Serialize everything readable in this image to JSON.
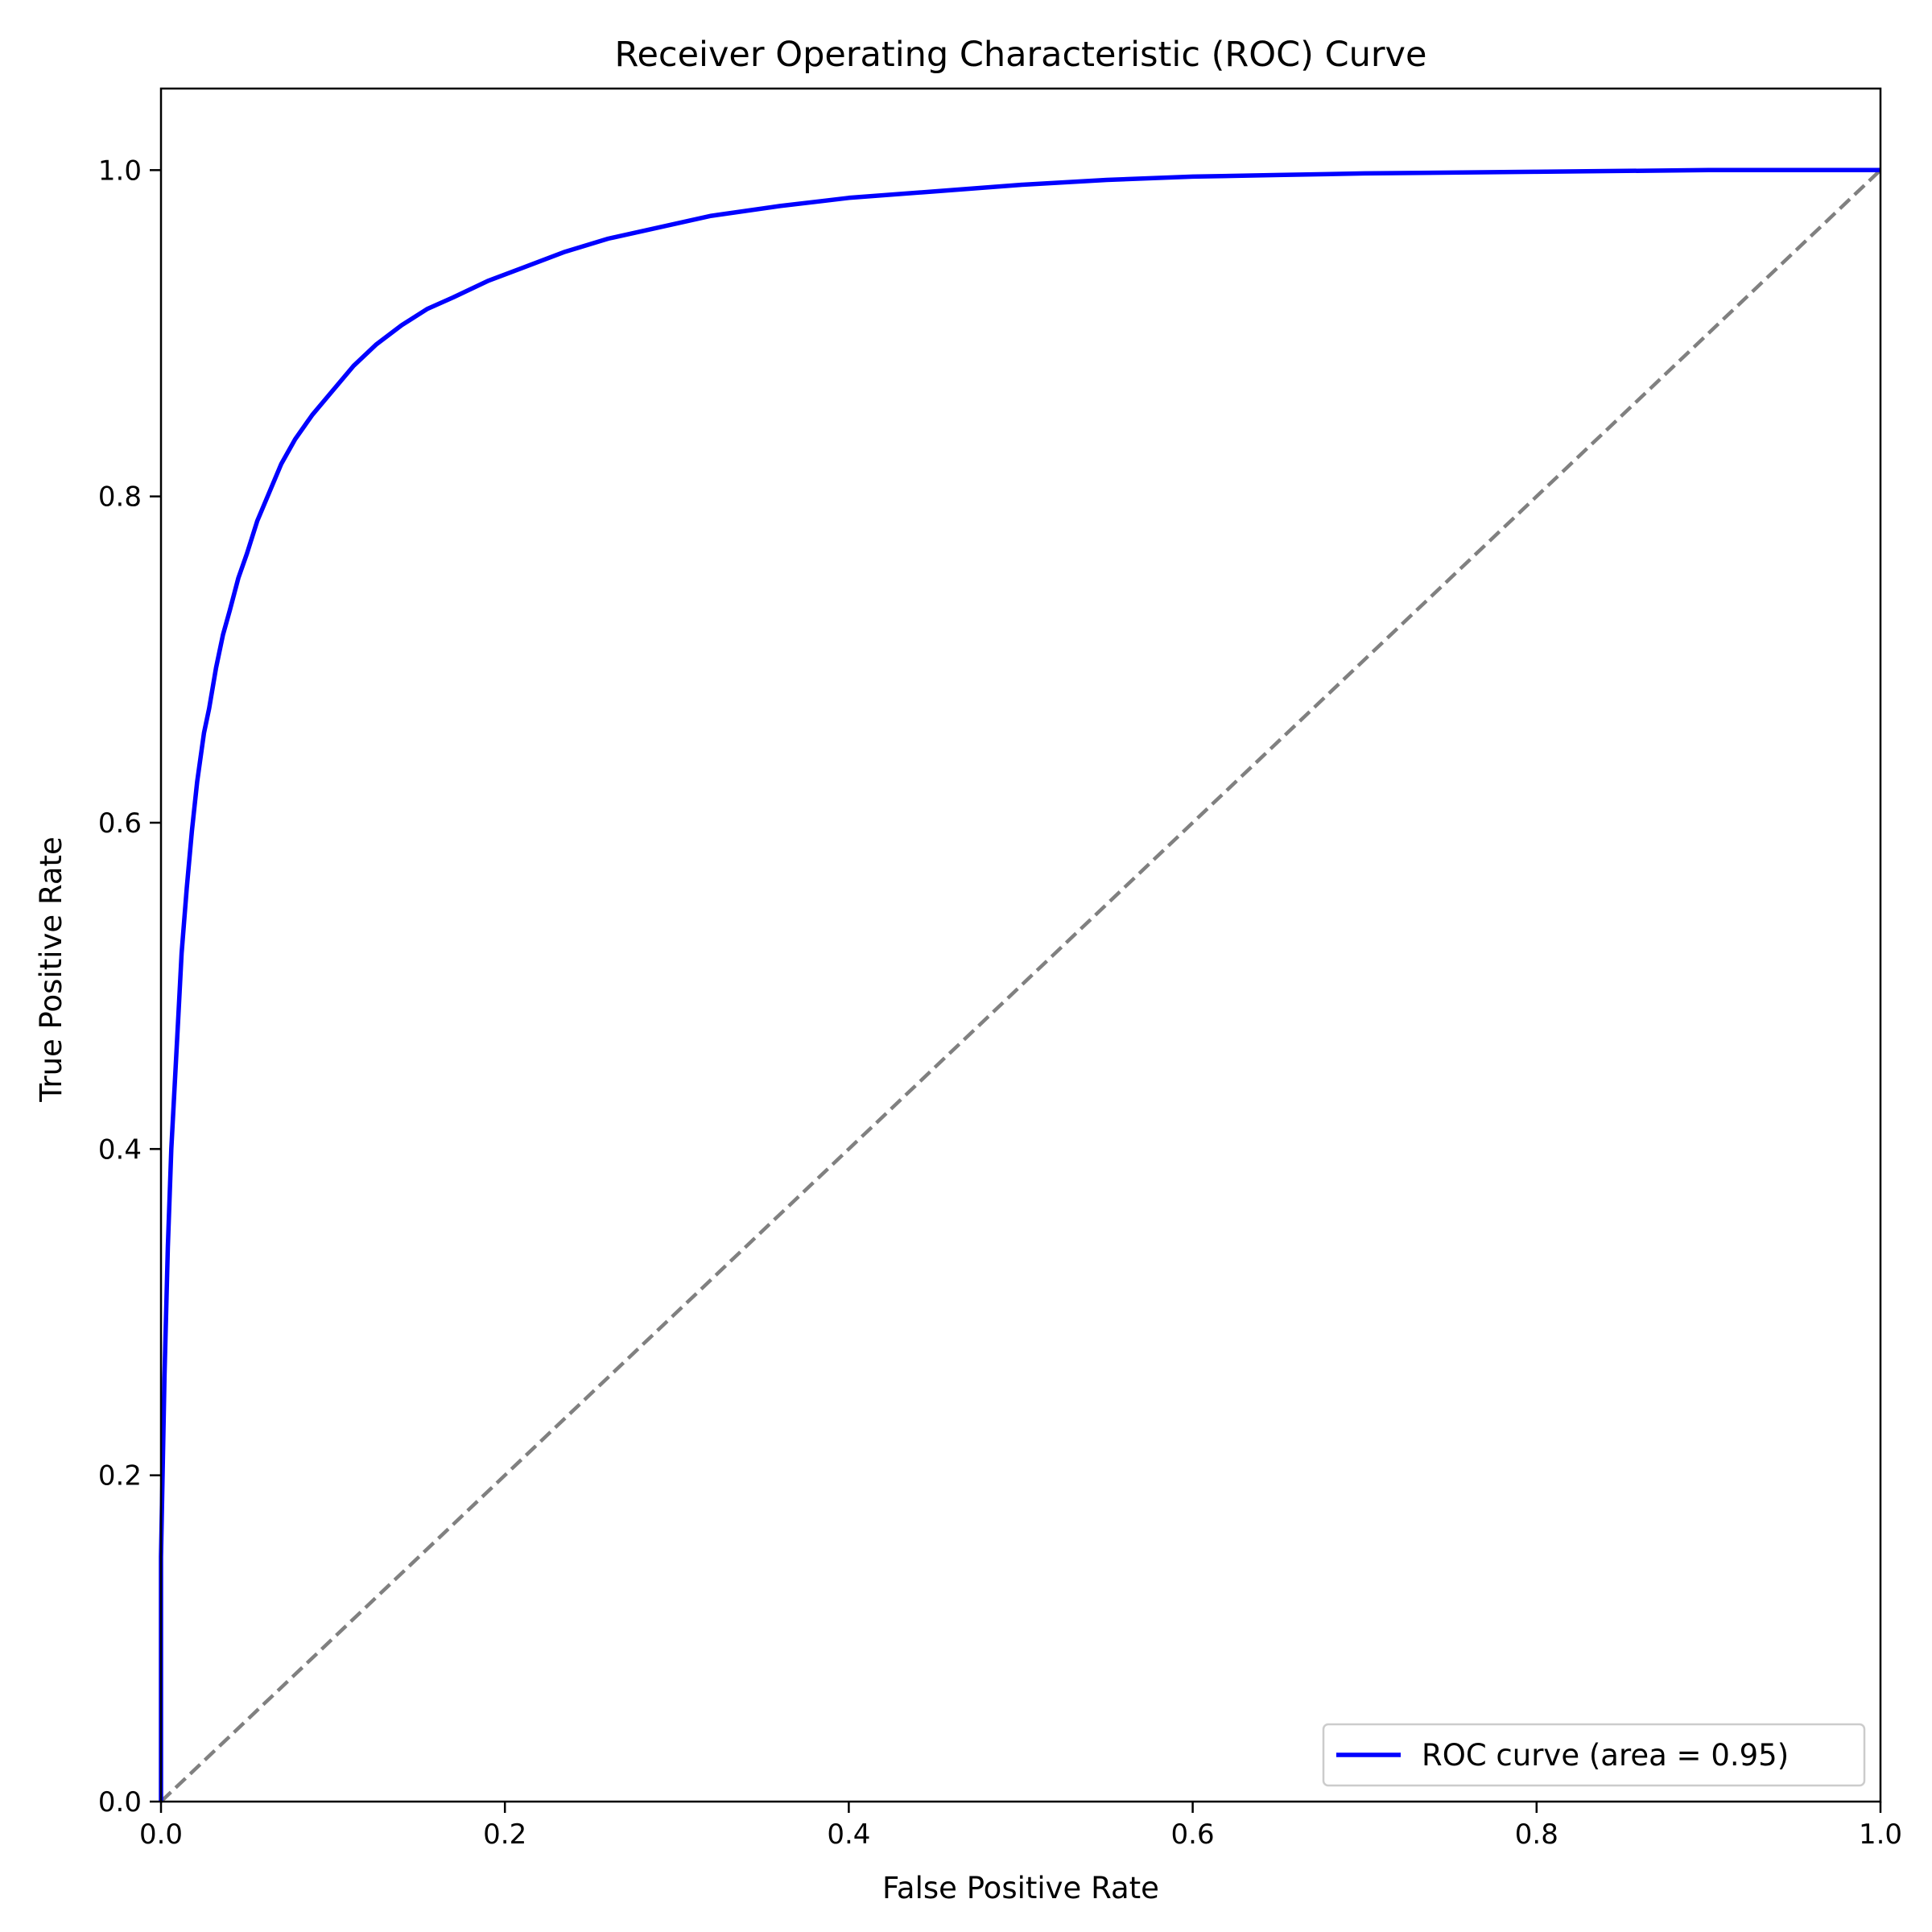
{
  "chart_data": {
    "type": "line",
    "title": "Receiver Operating Characteristic (ROC) Curve",
    "xlabel": "False Positive Rate",
    "ylabel": "True Positive Rate",
    "xlim": [
      0.0,
      1.0
    ],
    "ylim": [
      0.0,
      1.05
    ],
    "xticks": [
      "0.0",
      "0.2",
      "0.4",
      "0.6",
      "0.8",
      "1.0"
    ],
    "yticks": [
      "0.0",
      "0.2",
      "0.4",
      "0.6",
      "0.8",
      "1.0"
    ],
    "xtick_values": [
      0.0,
      0.2,
      0.4,
      0.6,
      0.8,
      1.0
    ],
    "ytick_values": [
      0.0,
      0.2,
      0.4,
      0.6,
      0.8,
      1.0
    ],
    "grid": false,
    "legend_position": "lower-right",
    "series": [
      {
        "name": "ROC curve (area = 0.95)",
        "color": "#0000ff",
        "style": "solid",
        "x": [
          0.0,
          0.0,
          0.002,
          0.004,
          0.006,
          0.008,
          0.01,
          0.012,
          0.015,
          0.018,
          0.021,
          0.025,
          0.028,
          0.032,
          0.036,
          0.04,
          0.045,
          0.05,
          0.056,
          0.062,
          0.07,
          0.078,
          0.088,
          0.1,
          0.112,
          0.125,
          0.14,
          0.155,
          0.17,
          0.19,
          0.21,
          0.235,
          0.26,
          0.29,
          0.32,
          0.36,
          0.4,
          0.45,
          0.5,
          0.55,
          0.6,
          0.65,
          0.7,
          0.8,
          0.9,
          1.0
        ],
        "y": [
          0.0,
          0.15,
          0.26,
          0.34,
          0.4,
          0.44,
          0.48,
          0.52,
          0.56,
          0.595,
          0.625,
          0.655,
          0.67,
          0.695,
          0.715,
          0.73,
          0.75,
          0.765,
          0.785,
          0.8,
          0.82,
          0.835,
          0.85,
          0.865,
          0.88,
          0.893,
          0.905,
          0.915,
          0.922,
          0.932,
          0.94,
          0.95,
          0.958,
          0.965,
          0.972,
          0.978,
          0.983,
          0.987,
          0.991,
          0.994,
          0.996,
          0.997,
          0.998,
          0.999,
          1.0,
          1.0
        ]
      },
      {
        "name": "",
        "color": "#808080",
        "style": "dashed",
        "x": [
          0.0,
          1.0
        ],
        "y": [
          0.0,
          1.0
        ]
      }
    ]
  }
}
